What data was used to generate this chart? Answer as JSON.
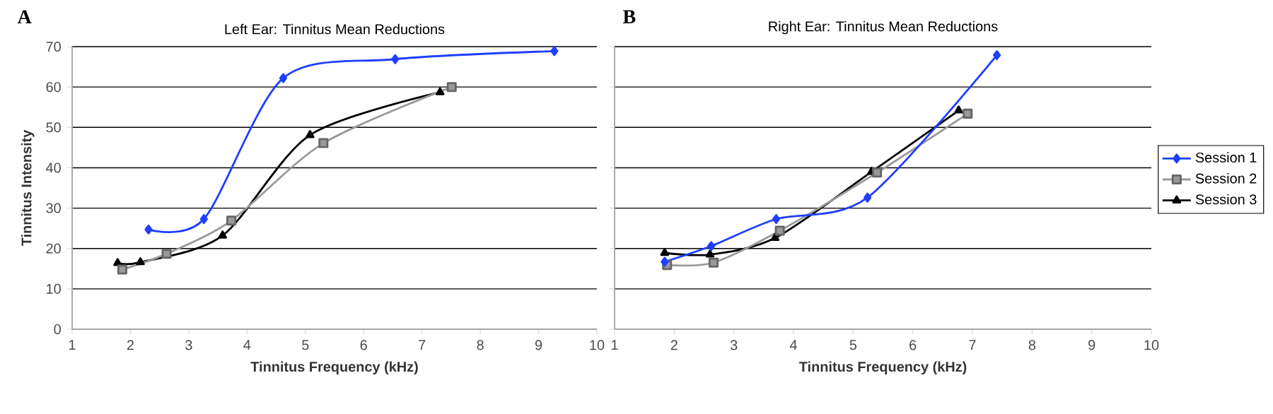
{
  "chart_data": [
    {
      "type": "line",
      "title": "Left Ear: Tinnitus Mean Reductions",
      "xlabel": "Tinnitus Frequency (kHz)",
      "ylabel": "Tinnitus Intensity",
      "annotations": [
        "A"
      ],
      "xlim": [
        1,
        10
      ],
      "ylim": [
        0,
        70
      ],
      "xticks": [
        1,
        2,
        3,
        4,
        5,
        6,
        7,
        8,
        9,
        10
      ],
      "yticks": [
        0,
        10,
        20,
        30,
        40,
        50,
        60,
        70
      ],
      "grid": "y",
      "series": [
        {
          "color": "#1f3fff",
          "marker": "diamond",
          "x": [
            2.31,
            3.26,
            4.62,
            6.54,
            9.27
          ],
          "values": [
            24.7,
            27.3,
            62.2,
            66.9,
            68.9
          ]
        },
        {
          "color": "#999999",
          "marker": "square",
          "x": [
            1.86,
            2.62,
            3.73,
            5.31,
            7.51
          ],
          "values": [
            14.8,
            18.7,
            26.9,
            46.1,
            60.0
          ]
        },
        {
          "color": "#000000",
          "marker": "triangle",
          "x": [
            1.78,
            2.17,
            3.58,
            5.08,
            7.31
          ],
          "values": [
            16.4,
            16.6,
            23.2,
            48.1,
            58.7
          ]
        }
      ]
    },
    {
      "type": "line",
      "title": "Right Ear: Tinnitus Mean Reductions",
      "xlabel": "Tinnitus Frequency (kHz)",
      "annotations": [
        "B"
      ],
      "xlim": [
        1,
        10
      ],
      "ylim": [
        0,
        70
      ],
      "xticks": [
        1,
        2,
        3,
        4,
        5,
        6,
        7,
        8,
        9,
        10
      ],
      "yticks": [
        0,
        10,
        20,
        30,
        40,
        50,
        60,
        70
      ],
      "grid": "y",
      "tick_labels": "x",
      "legend": "right",
      "series": [
        {
          "name": "Session 1",
          "color": "#1f3fff",
          "marker": "diamond",
          "x": [
            1.84,
            2.62,
            3.71,
            5.24,
            7.41
          ],
          "values": [
            16.7,
            20.6,
            27.3,
            32.6,
            67.9
          ]
        },
        {
          "name": "Session 2",
          "color": "#999999",
          "marker": "square",
          "x": [
            1.88,
            2.66,
            3.77,
            5.4,
            6.92
          ],
          "values": [
            15.9,
            16.5,
            24.4,
            38.8,
            53.4
          ]
        },
        {
          "name": "Session 3",
          "color": "#000000",
          "marker": "triangle",
          "x": [
            1.84,
            2.6,
            3.69,
            5.31,
            6.77
          ],
          "values": [
            18.9,
            18.5,
            22.6,
            39.0,
            54.2
          ]
        }
      ]
    }
  ]
}
